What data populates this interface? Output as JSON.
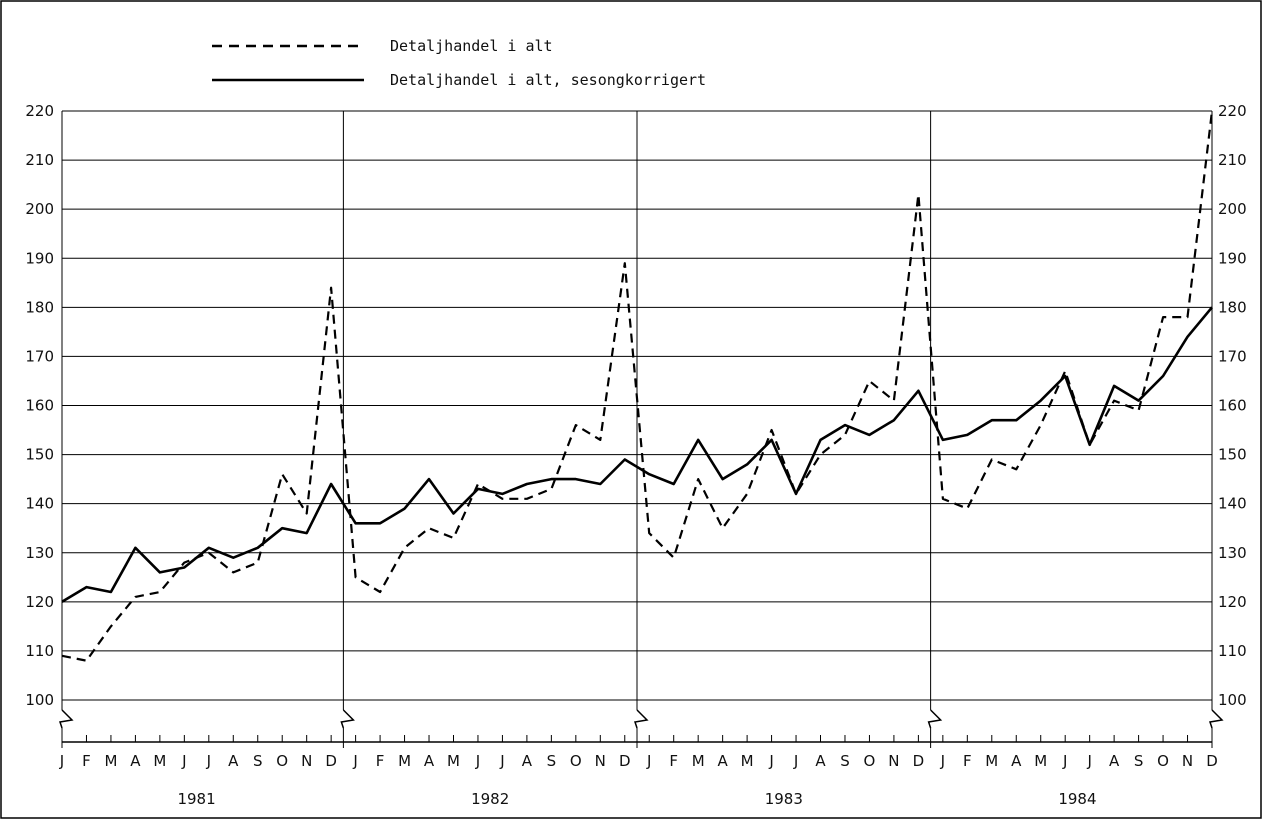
{
  "chart_data": {
    "type": "line",
    "title": "",
    "xlabel": "",
    "ylabel": "",
    "ylim": [
      100,
      220
    ],
    "yticks": [
      100,
      110,
      120,
      130,
      140,
      150,
      160,
      170,
      180,
      190,
      200,
      210,
      220
    ],
    "y_axis_both_sides": true,
    "axis_break": true,
    "grid": true,
    "legend_position": "top-left",
    "month_labels": [
      "J",
      "F",
      "M",
      "A",
      "M",
      "J",
      "J",
      "A",
      "S",
      "O",
      "N",
      "D"
    ],
    "years": [
      "1981",
      "1982",
      "1983",
      "1984"
    ],
    "series": [
      {
        "name": "Detaljhandel i alt",
        "style": "dashed",
        "values": [
          109,
          108,
          115,
          121,
          122,
          128,
          130,
          126,
          128,
          146,
          138,
          184,
          125,
          122,
          131,
          135,
          133,
          144,
          141,
          141,
          143,
          156,
          153,
          189,
          134,
          129,
          145,
          135,
          142,
          155,
          142,
          150,
          154,
          165,
          161,
          203,
          141,
          139,
          149,
          147,
          156,
          167,
          152,
          161,
          159,
          178,
          178,
          220
        ]
      },
      {
        "name": "Detaljhandel i alt, sesongkorrigert",
        "style": "solid",
        "values": [
          120,
          123,
          122,
          131,
          126,
          127,
          131,
          129,
          131,
          135,
          134,
          144,
          136,
          136,
          139,
          145,
          138,
          143,
          142,
          144,
          145,
          145,
          144,
          149,
          146,
          144,
          153,
          145,
          148,
          153,
          142,
          153,
          156,
          154,
          157,
          163,
          153,
          154,
          157,
          157,
          161,
          166,
          152,
          164,
          161,
          166,
          174,
          180
        ]
      }
    ]
  }
}
